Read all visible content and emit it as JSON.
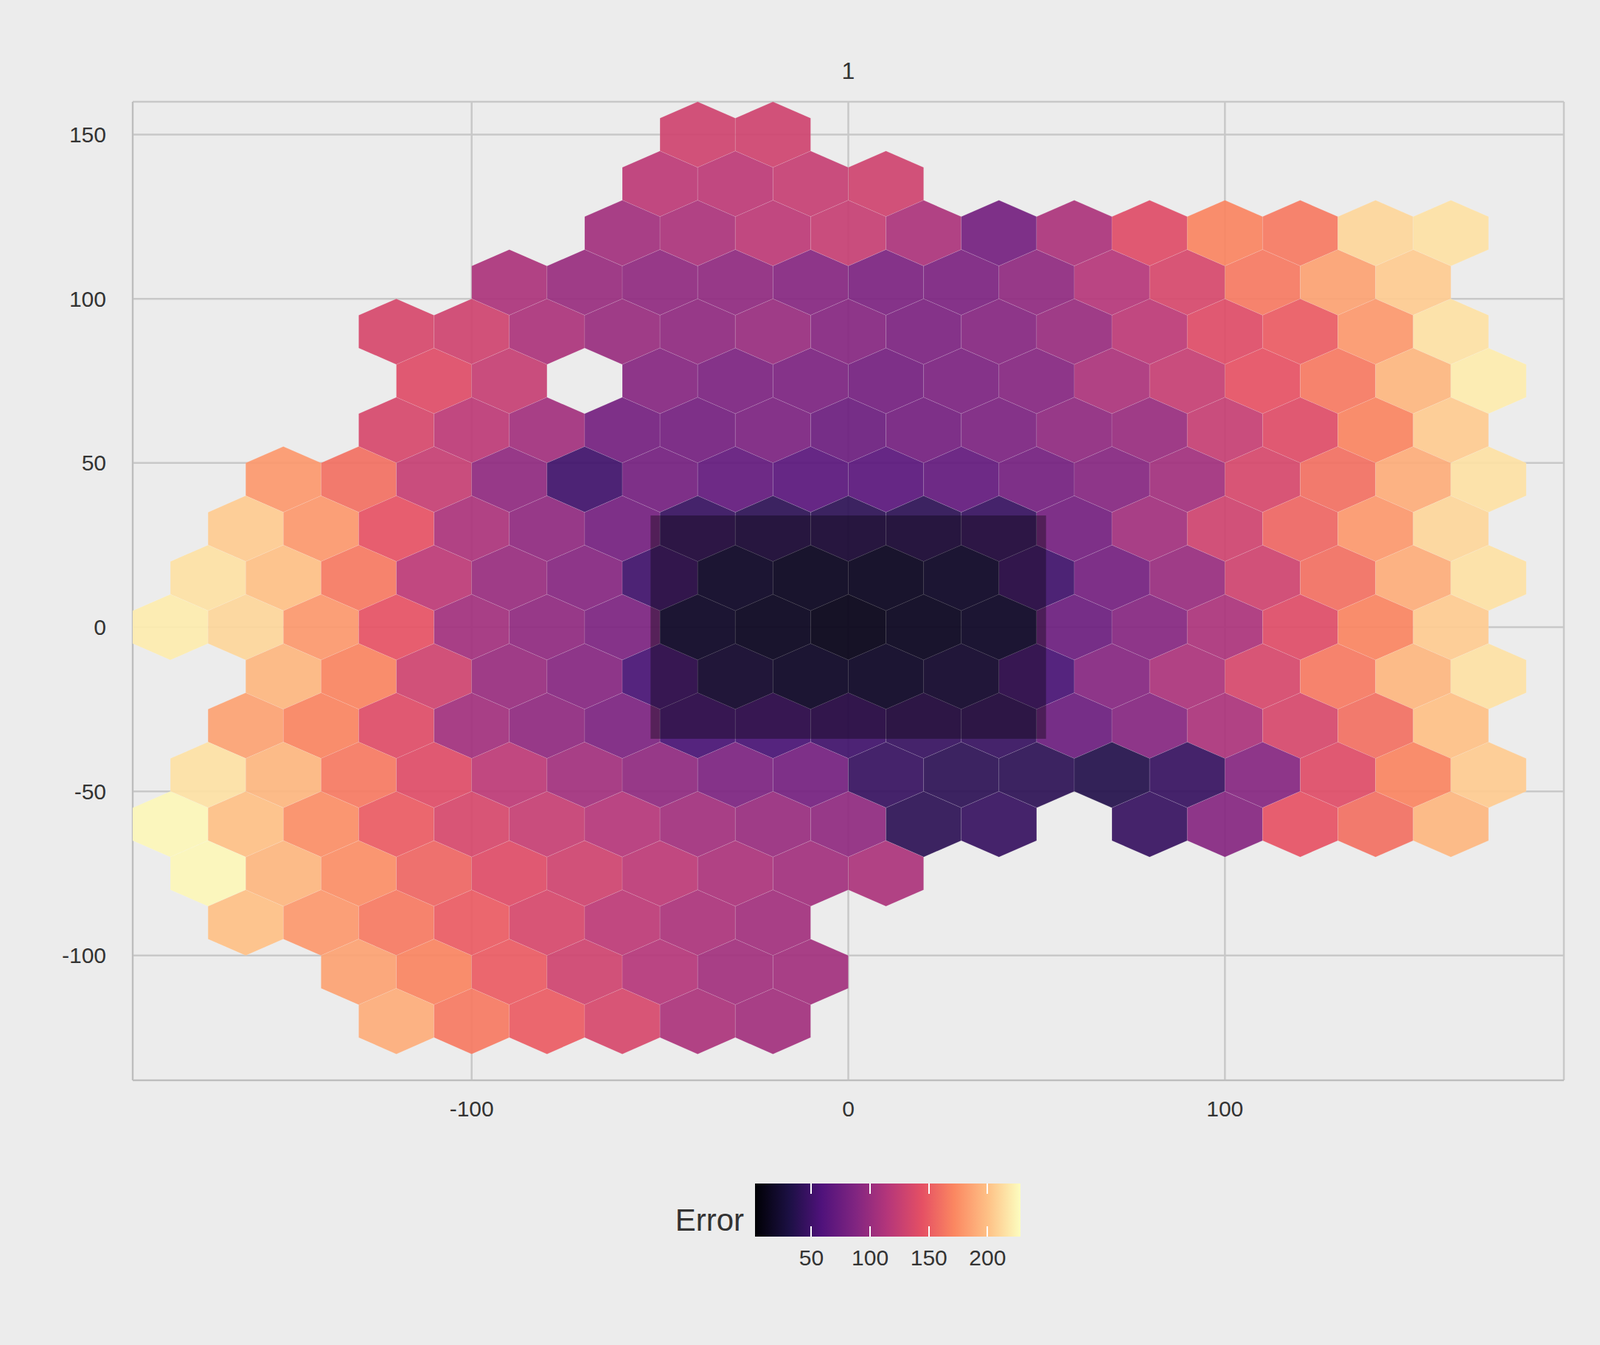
{
  "chart_data": {
    "type": "hexbin",
    "title": "1",
    "xlim": [
      -190,
      190
    ],
    "ylim": [
      -138,
      160
    ],
    "xticks": [
      -100,
      0,
      100
    ],
    "yticks": [
      -100,
      -50,
      0,
      50,
      100,
      150
    ],
    "grid": true,
    "color_label": "Error",
    "color_range": [
      2,
      228
    ],
    "color_ticks": [
      50,
      100,
      150,
      200
    ],
    "box": {
      "x": [
        -52.5,
        52.5
      ],
      "y": [
        -34,
        34
      ]
    },
    "cells": [
      [
        -40,
        150,
        130
      ],
      [
        -20,
        150,
        130
      ],
      [
        -50,
        135,
        120
      ],
      [
        -30,
        135,
        120
      ],
      [
        -10,
        135,
        125
      ],
      [
        10,
        135,
        130
      ],
      [
        -60,
        120,
        105
      ],
      [
        -40,
        120,
        110
      ],
      [
        -20,
        120,
        120
      ],
      [
        0,
        120,
        125
      ],
      [
        20,
        120,
        110
      ],
      [
        40,
        120,
        80
      ],
      [
        60,
        120,
        110
      ],
      [
        80,
        120,
        140
      ],
      [
        100,
        120,
        170
      ],
      [
        120,
        120,
        165
      ],
      [
        140,
        120,
        210
      ],
      [
        160,
        120,
        215
      ],
      [
        -90,
        105,
        110
      ],
      [
        -70,
        105,
        100
      ],
      [
        -50,
        105,
        95
      ],
      [
        -30,
        105,
        95
      ],
      [
        -10,
        105,
        90
      ],
      [
        10,
        105,
        85
      ],
      [
        30,
        105,
        85
      ],
      [
        50,
        105,
        95
      ],
      [
        70,
        105,
        115
      ],
      [
        90,
        105,
        135
      ],
      [
        110,
        105,
        165
      ],
      [
        130,
        105,
        185
      ],
      [
        150,
        105,
        205
      ],
      [
        -120,
        90,
        135
      ],
      [
        -100,
        90,
        130
      ],
      [
        -80,
        90,
        110
      ],
      [
        -60,
        90,
        100
      ],
      [
        -40,
        90,
        95
      ],
      [
        -20,
        90,
        100
      ],
      [
        0,
        90,
        90
      ],
      [
        20,
        90,
        85
      ],
      [
        40,
        90,
        90
      ],
      [
        60,
        90,
        100
      ],
      [
        80,
        90,
        120
      ],
      [
        100,
        90,
        140
      ],
      [
        120,
        90,
        150
      ],
      [
        140,
        90,
        180
      ],
      [
        160,
        90,
        215
      ],
      [
        -110,
        75,
        140
      ],
      [
        -90,
        75,
        125
      ],
      [
        -50,
        75,
        90
      ],
      [
        -30,
        75,
        85
      ],
      [
        -10,
        75,
        85
      ],
      [
        10,
        75,
        80
      ],
      [
        30,
        75,
        85
      ],
      [
        50,
        75,
        90
      ],
      [
        70,
        75,
        110
      ],
      [
        90,
        75,
        125
      ],
      [
        110,
        75,
        145
      ],
      [
        130,
        75,
        165
      ],
      [
        150,
        75,
        195
      ],
      [
        170,
        75,
        220
      ],
      [
        -120,
        60,
        135
      ],
      [
        -100,
        60,
        120
      ],
      [
        -80,
        60,
        105
      ],
      [
        -60,
        60,
        80
      ],
      [
        -40,
        60,
        80
      ],
      [
        -20,
        60,
        85
      ],
      [
        0,
        60,
        75
      ],
      [
        20,
        60,
        80
      ],
      [
        40,
        60,
        85
      ],
      [
        60,
        60,
        95
      ],
      [
        80,
        60,
        100
      ],
      [
        100,
        60,
        125
      ],
      [
        120,
        60,
        140
      ],
      [
        140,
        60,
        170
      ],
      [
        160,
        60,
        205
      ],
      [
        -150,
        45,
        180
      ],
      [
        -130,
        45,
        160
      ],
      [
        -110,
        45,
        125
      ],
      [
        -90,
        45,
        95
      ],
      [
        -70,
        45,
        50
      ],
      [
        -50,
        45,
        80
      ],
      [
        -30,
        45,
        70
      ],
      [
        -10,
        45,
        65
      ],
      [
        10,
        45,
        65
      ],
      [
        30,
        45,
        70
      ],
      [
        50,
        45,
        80
      ],
      [
        70,
        45,
        90
      ],
      [
        90,
        45,
        105
      ],
      [
        110,
        45,
        135
      ],
      [
        130,
        45,
        160
      ],
      [
        150,
        45,
        190
      ],
      [
        170,
        45,
        215
      ],
      [
        -160,
        30,
        205
      ],
      [
        -140,
        30,
        180
      ],
      [
        -120,
        30,
        145
      ],
      [
        -100,
        30,
        110
      ],
      [
        -80,
        30,
        95
      ],
      [
        -60,
        30,
        80
      ],
      [
        -40,
        30,
        45
      ],
      [
        -20,
        30,
        40
      ],
      [
        0,
        30,
        40
      ],
      [
        20,
        30,
        40
      ],
      [
        40,
        30,
        45
      ],
      [
        60,
        30,
        80
      ],
      [
        80,
        30,
        105
      ],
      [
        100,
        30,
        130
      ],
      [
        120,
        30,
        155
      ],
      [
        140,
        30,
        180
      ],
      [
        160,
        30,
        210
      ],
      [
        -170,
        15,
        215
      ],
      [
        -150,
        15,
        200
      ],
      [
        -130,
        15,
        165
      ],
      [
        -110,
        15,
        120
      ],
      [
        -90,
        15,
        100
      ],
      [
        -70,
        15,
        90
      ],
      [
        -50,
        15,
        50
      ],
      [
        -30,
        15,
        30
      ],
      [
        -10,
        15,
        25
      ],
      [
        10,
        15,
        25
      ],
      [
        30,
        15,
        30
      ],
      [
        50,
        15,
        50
      ],
      [
        70,
        15,
        80
      ],
      [
        90,
        15,
        100
      ],
      [
        110,
        15,
        130
      ],
      [
        130,
        15,
        160
      ],
      [
        150,
        15,
        190
      ],
      [
        170,
        15,
        215
      ],
      [
        -180,
        0,
        220
      ],
      [
        -160,
        0,
        210
      ],
      [
        -140,
        0,
        180
      ],
      [
        -120,
        0,
        145
      ],
      [
        -100,
        0,
        105
      ],
      [
        -80,
        0,
        95
      ],
      [
        -60,
        0,
        85
      ],
      [
        -40,
        0,
        30
      ],
      [
        -20,
        0,
        25
      ],
      [
        0,
        0,
        20
      ],
      [
        20,
        0,
        25
      ],
      [
        40,
        0,
        30
      ],
      [
        60,
        0,
        75
      ],
      [
        80,
        0,
        90
      ],
      [
        100,
        0,
        110
      ],
      [
        120,
        0,
        140
      ],
      [
        140,
        0,
        170
      ],
      [
        160,
        0,
        205
      ],
      [
        -150,
        -15,
        195
      ],
      [
        -130,
        -15,
        170
      ],
      [
        -110,
        -15,
        130
      ],
      [
        -90,
        -15,
        100
      ],
      [
        -70,
        -15,
        90
      ],
      [
        -50,
        -15,
        55
      ],
      [
        -30,
        -15,
        35
      ],
      [
        -10,
        -15,
        30
      ],
      [
        10,
        -15,
        30
      ],
      [
        30,
        -15,
        35
      ],
      [
        50,
        -15,
        55
      ],
      [
        70,
        -15,
        90
      ],
      [
        90,
        -15,
        110
      ],
      [
        110,
        -15,
        135
      ],
      [
        130,
        -15,
        165
      ],
      [
        150,
        -15,
        195
      ],
      [
        170,
        -15,
        215
      ],
      [
        -160,
        -30,
        185
      ],
      [
        -140,
        -30,
        170
      ],
      [
        -120,
        -30,
        140
      ],
      [
        -100,
        -30,
        105
      ],
      [
        -80,
        -30,
        95
      ],
      [
        -60,
        -30,
        85
      ],
      [
        -40,
        -30,
        55
      ],
      [
        -20,
        -30,
        55
      ],
      [
        0,
        -30,
        50
      ],
      [
        20,
        -30,
        45
      ],
      [
        40,
        -30,
        45
      ],
      [
        60,
        -30,
        75
      ],
      [
        80,
        -30,
        90
      ],
      [
        100,
        -30,
        110
      ],
      [
        120,
        -30,
        135
      ],
      [
        140,
        -30,
        160
      ],
      [
        160,
        -30,
        200
      ],
      [
        -170,
        -45,
        215
      ],
      [
        -150,
        -45,
        195
      ],
      [
        -130,
        -45,
        165
      ],
      [
        -110,
        -45,
        140
      ],
      [
        -90,
        -45,
        120
      ],
      [
        -70,
        -45,
        105
      ],
      [
        -50,
        -45,
        95
      ],
      [
        -30,
        -45,
        85
      ],
      [
        -10,
        -45,
        80
      ],
      [
        10,
        -45,
        45
      ],
      [
        30,
        -45,
        40
      ],
      [
        50,
        -45,
        40
      ],
      [
        70,
        -45,
        35
      ],
      [
        90,
        -45,
        45
      ],
      [
        110,
        -45,
        90
      ],
      [
        130,
        -45,
        140
      ],
      [
        150,
        -45,
        170
      ],
      [
        170,
        -45,
        205
      ],
      [
        -180,
        -60,
        225
      ],
      [
        -160,
        -60,
        200
      ],
      [
        -140,
        -60,
        175
      ],
      [
        -120,
        -60,
        150
      ],
      [
        -100,
        -60,
        135
      ],
      [
        -80,
        -60,
        125
      ],
      [
        -60,
        -60,
        115
      ],
      [
        -40,
        -60,
        105
      ],
      [
        -20,
        -60,
        100
      ],
      [
        0,
        -60,
        95
      ],
      [
        20,
        -60,
        40
      ],
      [
        40,
        -60,
        45
      ],
      [
        80,
        -60,
        45
      ],
      [
        100,
        -60,
        90
      ],
      [
        120,
        -60,
        145
      ],
      [
        140,
        -60,
        160
      ],
      [
        160,
        -60,
        195
      ],
      [
        -170,
        -75,
        225
      ],
      [
        -150,
        -75,
        195
      ],
      [
        -130,
        -75,
        175
      ],
      [
        -110,
        -75,
        155
      ],
      [
        -90,
        -75,
        140
      ],
      [
        -70,
        -75,
        130
      ],
      [
        -50,
        -75,
        120
      ],
      [
        -30,
        -75,
        110
      ],
      [
        -10,
        -75,
        105
      ],
      [
        10,
        -75,
        110
      ],
      [
        -160,
        -90,
        200
      ],
      [
        -140,
        -90,
        180
      ],
      [
        -120,
        -90,
        165
      ],
      [
        -100,
        -90,
        150
      ],
      [
        -80,
        -90,
        135
      ],
      [
        -60,
        -90,
        120
      ],
      [
        -40,
        -90,
        110
      ],
      [
        -20,
        -90,
        105
      ],
      [
        -130,
        -105,
        185
      ],
      [
        -110,
        -105,
        170
      ],
      [
        -90,
        -105,
        150
      ],
      [
        -70,
        -105,
        130
      ],
      [
        -50,
        -105,
        115
      ],
      [
        -30,
        -105,
        105
      ],
      [
        -10,
        -105,
        105
      ],
      [
        -120,
        -120,
        190
      ],
      [
        -100,
        -120,
        165
      ],
      [
        -80,
        -120,
        150
      ],
      [
        -60,
        -120,
        135
      ],
      [
        -40,
        -120,
        110
      ],
      [
        -20,
        -120,
        105
      ]
    ]
  }
}
